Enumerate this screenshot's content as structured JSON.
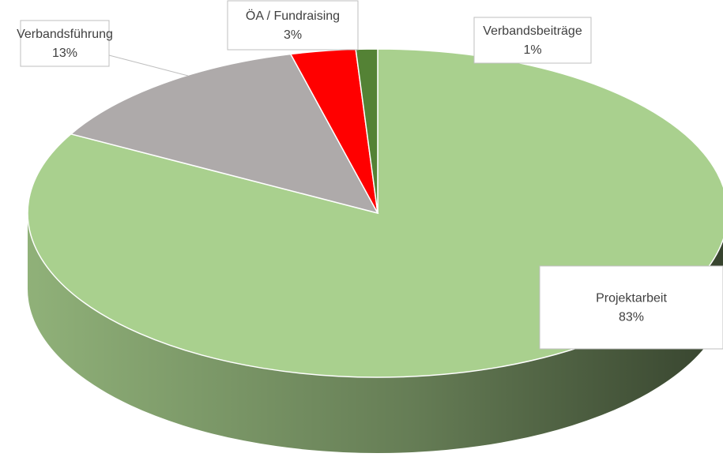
{
  "chart_data": {
    "type": "pie",
    "categories": [
      "Projektarbeit",
      "Verbandsführung",
      "ÖA / Fundraising",
      "Verbandsbeiträge"
    ],
    "values": [
      83,
      13,
      3,
      1
    ],
    "value_labels": [
      "83%",
      "13%",
      "3%",
      "1%"
    ],
    "colors": [
      "#a9d08e",
      "#aeaaaa",
      "#ff0000",
      "#548235"
    ]
  }
}
